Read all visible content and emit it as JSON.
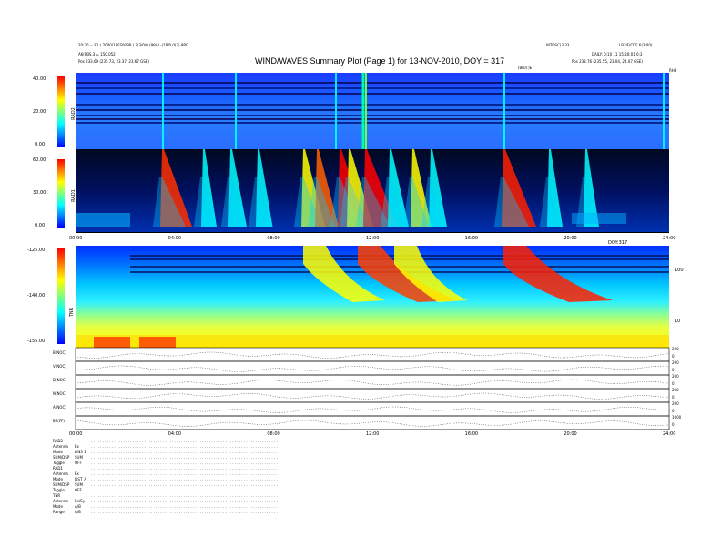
{
  "header": {
    "title": "WIND/WAVES Summary Plot (Page 1) for 13-NOV-2010, DOY = 317",
    "left_line1": "20:30 = 81 ( 2000/18FS00BP ) 7(3/0/0 (99/)/  -(1P/0 0(7) 8PC",
    "left_line2": "A6(PBS.3 = 150.052",
    "left_pos": "Pos   233.69 (235.73, 23.37, 23.67 GSE)",
    "right_line1": "WTOSC(3:33",
    "right_line2": "LB3IF/CDF 6(3:00)",
    "right_line3": "DAILY: 0:10 11 15:20:01 0:3",
    "right_pos": "Pos   233.76 (235.55, 23.04, 24.07 GSE)",
    "tbs_label": "TB(UT)E",
    "corner_label": "RH3"
  },
  "chart_data": [
    {
      "type": "heatmap",
      "title": "RAD2",
      "ylabel": "RAD2",
      "yticks": [
        "40.00",
        "20.00",
        "0.00"
      ],
      "ylim": [
        0,
        40
      ],
      "colorscale": [
        "#0000ff",
        "#00ffff",
        "#ffff00",
        "#ff0000"
      ],
      "description": "frequency vs time dynamic spectrum"
    },
    {
      "type": "heatmap",
      "title": "RAD1",
      "ylabel": "RAD1",
      "yticks": [
        "60.00",
        "30.00",
        "0.00"
      ],
      "ylim": [
        0,
        60
      ],
      "colorscale": [
        "#000033",
        "#0000ff",
        "#00ffff",
        "#ffff00",
        "#ff0000"
      ]
    },
    {
      "type": "heatmap",
      "title": "TNR",
      "ylabel": "TNR",
      "yticks": [
        "-125.00",
        "-140.00",
        "-155.00"
      ],
      "ylim": [
        -155,
        -125
      ],
      "right_ticks": [
        "100",
        "10"
      ],
      "colorscale": [
        "#0000ff",
        "#00ffff",
        "#ffff00",
        "#ff0000"
      ]
    },
    {
      "type": "line",
      "panels": [
        {
          "label": "B(NOC)",
          "right": [
            "200",
            "0"
          ]
        },
        {
          "label": "V(NOC)",
          "right": [
            "200",
            "0"
          ]
        },
        {
          "label": "D(NOC)",
          "right": [
            "200",
            "0"
          ]
        },
        {
          "label": "N(NOC)",
          "right": [
            "200",
            "0"
          ]
        },
        {
          "label": "A(NOC)",
          "right": [
            "200",
            "0"
          ]
        },
        {
          "label": "BE(FF)",
          "right": [
            "1000",
            "0"
          ]
        }
      ]
    }
  ],
  "time_axis": {
    "labels": [
      "00:00",
      "04:00",
      "08:00",
      "12:00",
      "16:00",
      "20:00",
      "24:00"
    ],
    "axis_label_1": "DOY:317",
    "axis_label_2": "DOY:317"
  },
  "footer": {
    "rows": [
      {
        "k": "RAD2",
        "v": ""
      },
      {
        "k": "Antenna",
        "v": "Ex"
      },
      {
        "k": "Mode",
        "v": "LIN3 1"
      },
      {
        "k": "SUM/DSP",
        "v": "SUM"
      },
      {
        "k": "Toggle",
        "v": "OFF"
      },
      {
        "k": "RAD1",
        "v": ""
      },
      {
        "k": "Antenna",
        "v": "Ex"
      },
      {
        "k": "Mode",
        "v": "LIST_A"
      },
      {
        "k": "SUM/DSP",
        "v": "SUM"
      },
      {
        "k": "Toggle",
        "v": "OFF"
      },
      {
        "k": "TNR",
        "v": ""
      },
      {
        "k": "Antenna",
        "v": "Ex/Ey"
      },
      {
        "k": "Mode",
        "v": "A/B"
      },
      {
        "k": "Range",
        "v": "A/B"
      }
    ]
  }
}
